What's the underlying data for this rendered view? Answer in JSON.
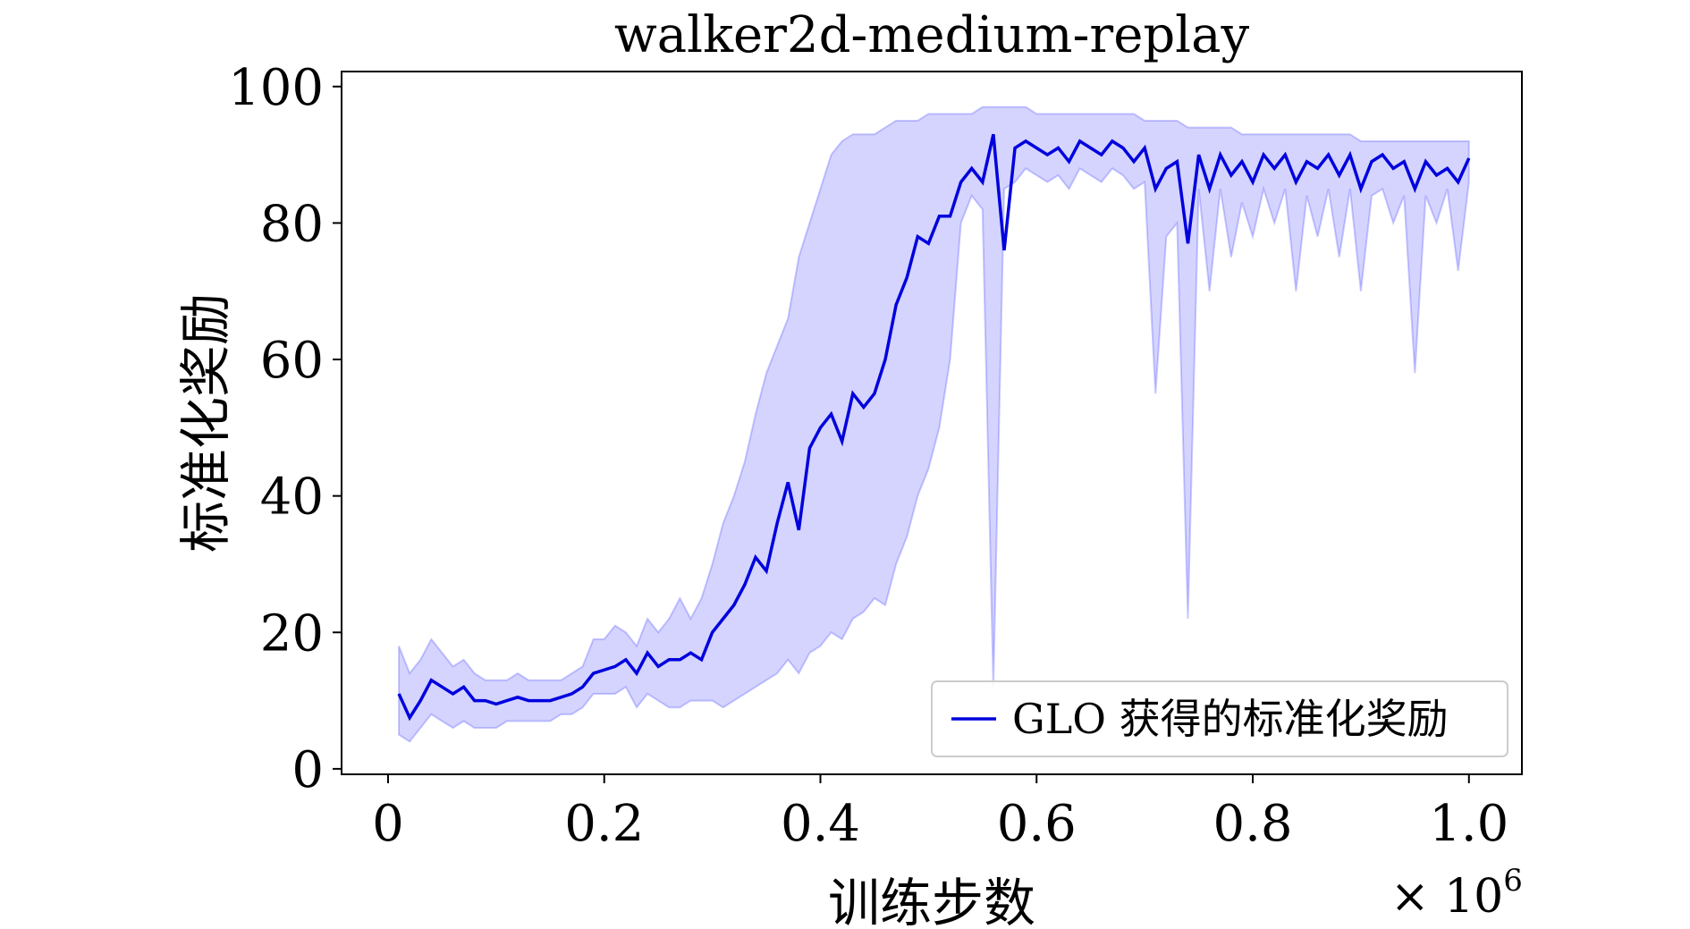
{
  "chart_data": {
    "type": "line",
    "title": "walker2d-medium-replay",
    "x_label": "训练步数",
    "y_label": "标准化奖励",
    "x_offset": {
      "text": "× 10",
      "exponent": "6"
    },
    "xlim": [
      -0.043,
      1.049
    ],
    "ylim": [
      -0.8,
      102.2
    ],
    "xticks": [
      0,
      0.2,
      0.4,
      0.6,
      0.8,
      {
        "value": 1,
        "label": "1.0"
      }
    ],
    "yticks": [
      0,
      20,
      40,
      60,
      80,
      100
    ],
    "legend": "lower right",
    "x": [
      0.01,
      0.02,
      0.03,
      0.04,
      0.05,
      0.06,
      0.07,
      0.08,
      0.09,
      0.1,
      0.11,
      0.12,
      0.13,
      0.14,
      0.15,
      0.16,
      0.17,
      0.18,
      0.19,
      0.2,
      0.21,
      0.22,
      0.23,
      0.24,
      0.25,
      0.26,
      0.27,
      0.28,
      0.29,
      0.3,
      0.31,
      0.32,
      0.33,
      0.34,
      0.35,
      0.36,
      0.37,
      0.38,
      0.39,
      0.4,
      0.41,
      0.42,
      0.43,
      0.44,
      0.45,
      0.46,
      0.47,
      0.48,
      0.49,
      0.5,
      0.51,
      0.52,
      0.53,
      0.54,
      0.55,
      0.56,
      0.57,
      0.58,
      0.59,
      0.6,
      0.61,
      0.62,
      0.63,
      0.64,
      0.65,
      0.66,
      0.67,
      0.68,
      0.69,
      0.7,
      0.71,
      0.72,
      0.73,
      0.74,
      0.75,
      0.76,
      0.77,
      0.78,
      0.79,
      0.8,
      0.81,
      0.82,
      0.83,
      0.84,
      0.85,
      0.86,
      0.87,
      0.88,
      0.89,
      0.9,
      0.91,
      0.92,
      0.93,
      0.94,
      0.95,
      0.96,
      0.97,
      0.98,
      0.99,
      1.0
    ],
    "series": [
      {
        "name": "GLO 获得的标准化奖励",
        "color": "#0000dd",
        "band_color": "#0000ff",
        "values": [
          11,
          7.5,
          10,
          13,
          12,
          11,
          12,
          10,
          10,
          9.5,
          10,
          10.5,
          10,
          10,
          10,
          10.5,
          11,
          12,
          14,
          14.5,
          15,
          16,
          14,
          17,
          15,
          16,
          16,
          17,
          16,
          20,
          22,
          24,
          27,
          31,
          29,
          36,
          42,
          35,
          47,
          50,
          52,
          48,
          55,
          53,
          55,
          60,
          68,
          72,
          78,
          77,
          81,
          81,
          86,
          88,
          86,
          93,
          76,
          91,
          92,
          91,
          90,
          91,
          89,
          92,
          91,
          90,
          92,
          91,
          89,
          91,
          85,
          88,
          89,
          77,
          90,
          85,
          90,
          87,
          89,
          86,
          90,
          88,
          90,
          86,
          89,
          88,
          90,
          87,
          90,
          85,
          89,
          90,
          88,
          89,
          85,
          89,
          87,
          88,
          86,
          89.5
        ],
        "lower": [
          5,
          4,
          6,
          8,
          7,
          6,
          7,
          6,
          6,
          6,
          7,
          7,
          7,
          7,
          7,
          8,
          8,
          9,
          11,
          11,
          11,
          12,
          9,
          11,
          10,
          9,
          9,
          10,
          10,
          10,
          9,
          10,
          11,
          12,
          13,
          14,
          16,
          14,
          17,
          18,
          20,
          19,
          22,
          23,
          25,
          24,
          30,
          34,
          40,
          44,
          50,
          60,
          80,
          84,
          82,
          12,
          85,
          86,
          88,
          87,
          86,
          87,
          85,
          88,
          87,
          86,
          88,
          87,
          85,
          86,
          55,
          78,
          80,
          22,
          85,
          70,
          85,
          75,
          83,
          78,
          85,
          80,
          85,
          70,
          84,
          78,
          85,
          75,
          85,
          70,
          84,
          85,
          80,
          84,
          58,
          84,
          80,
          85,
          73,
          86
        ],
        "upper": [
          18,
          14,
          16,
          19,
          17,
          15,
          16,
          14,
          13,
          13,
          13,
          14,
          13,
          13,
          13,
          13,
          14,
          15,
          19,
          19,
          21,
          20,
          18,
          22,
          20,
          22,
          25,
          22,
          25,
          30,
          36,
          40,
          45,
          52,
          58,
          62,
          66,
          75,
          80,
          85,
          90,
          92,
          93,
          93,
          93,
          94,
          95,
          95,
          95,
          96,
          96,
          96,
          96,
          96,
          97,
          97,
          97,
          97,
          97,
          96,
          96,
          96,
          96,
          96,
          96,
          96,
          96,
          96,
          96,
          95,
          95,
          95,
          95,
          94,
          94,
          94,
          94,
          94,
          93,
          93,
          93,
          93,
          93,
          93,
          93,
          93,
          93,
          93,
          93,
          92,
          92,
          92,
          92,
          92,
          92,
          92,
          92,
          92,
          92,
          92
        ]
      }
    ]
  }
}
